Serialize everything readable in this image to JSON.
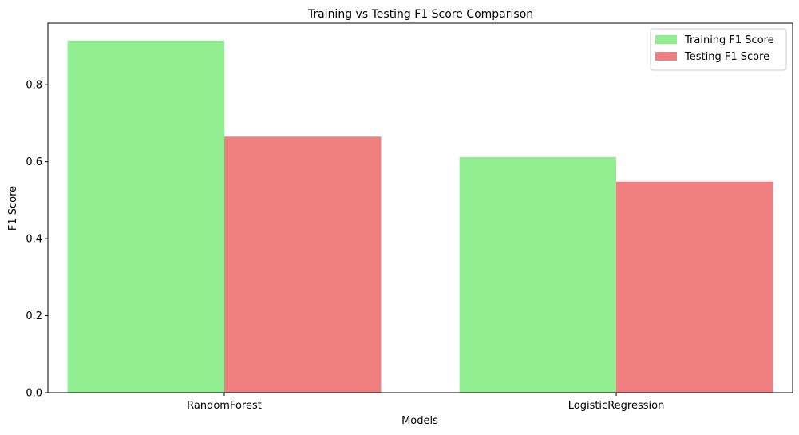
{
  "chart_data": {
    "type": "bar",
    "title": "Training vs Testing F1 Score Comparison",
    "xlabel": "Models",
    "ylabel": "F1 Score",
    "categories": [
      "RandomForest",
      "LogisticRegression"
    ],
    "series": [
      {
        "name": "Training F1 Score",
        "values": [
          0.915,
          0.612
        ],
        "color": "#90ee90"
      },
      {
        "name": "Testing F1 Score",
        "values": [
          0.665,
          0.548
        ],
        "color": "#f08080"
      }
    ],
    "ylim": [
      0,
      0.96
    ],
    "yticks": [
      0.0,
      0.2,
      0.4,
      0.6,
      0.8
    ],
    "ytick_labels": [
      "0.0",
      "0.2",
      "0.4",
      "0.6",
      "0.8"
    ],
    "grid": false,
    "legend_position": "top-right"
  }
}
